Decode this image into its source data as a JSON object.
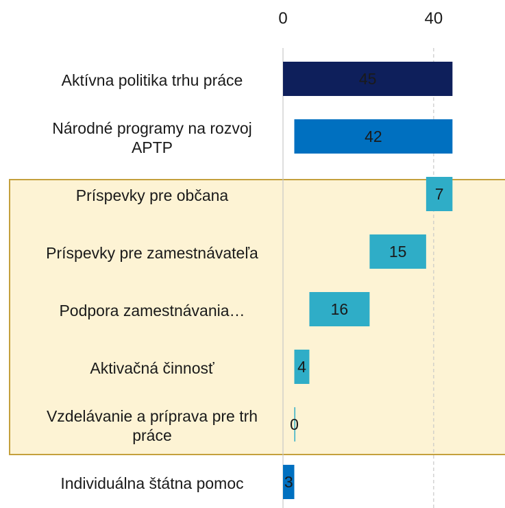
{
  "chart_data": {
    "type": "waterfall",
    "categories": [
      "Aktívna politika trhu práce",
      "Národné programy na rozvoj APTP",
      "Príspevky pre občana",
      "Príspevky pre zamestnávateľa",
      "Podpora zamestnávania…",
      "Aktivačná činnosť",
      "Vzdelávanie a príprava pre trh práce",
      "Individuálna štátna pomoc"
    ],
    "values": [
      45,
      42,
      7,
      15,
      16,
      4,
      0,
      3
    ],
    "measure": [
      "total",
      "total",
      "relative",
      "relative",
      "relative",
      "relative",
      "relative",
      "relative"
    ],
    "colors": [
      "#0e1f5b",
      "#0070c0",
      "#2fadc7",
      "#2fadc7",
      "#2fadc7",
      "#2fadc7",
      "#2fadc7",
      "#0070c0"
    ],
    "xlim": [
      0,
      45.3
    ],
    "xticks": [
      0,
      40
    ],
    "grid": true
  }
}
